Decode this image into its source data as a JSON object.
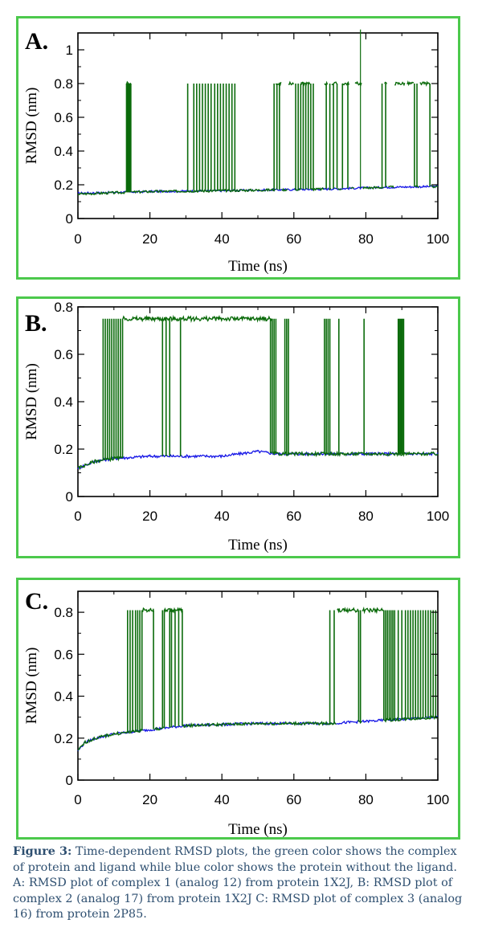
{
  "colors": {
    "complex": "#0b6b0b",
    "protein": "#1414e6",
    "frame": "#4cc94c"
  },
  "chart_data": [
    {
      "type": "line",
      "panel_label": "A.",
      "xlabel": "Time (ns)",
      "ylabel": "RMSD (nm)",
      "xlim": [
        0,
        100
      ],
      "ylim": [
        0,
        1.1
      ],
      "xticks": [
        0,
        20,
        40,
        60,
        80,
        100
      ],
      "yticks": [
        0,
        0.2,
        0.4,
        0.6,
        0.8,
        1
      ],
      "ytick_labels": [
        "0",
        "0.2",
        "0.4",
        "0.6",
        "0.8",
        "1"
      ],
      "grid": false,
      "series": [
        {
          "role": "protein",
          "x": [
            0,
            20,
            40,
            55,
            70,
            85,
            100
          ],
          "y": [
            0.15,
            0.16,
            0.165,
            0.17,
            0.175,
            0.185,
            0.19
          ]
        },
        {
          "role": "complex",
          "baseline": {
            "x": [
              0,
              20,
              40,
              55,
              70,
              85,
              100
            ],
            "y": [
              0.145,
              0.16,
              0.165,
              0.17,
              0.175,
              0.185,
              0.19
            ]
          },
          "high_level": 0.8,
          "high_intervals": [
            [
              13.5,
              14.8
            ],
            [
              55,
              56.5
            ],
            [
              58.5,
              60
            ],
            [
              62,
              64.5
            ],
            [
              68.5,
              69.5
            ],
            [
              70.5,
              72
            ],
            [
              73.5,
              75.5
            ],
            [
              77,
              79
            ],
            [
              85.2,
              86
            ],
            [
              88,
              91
            ],
            [
              91.5,
              93.5
            ],
            [
              95,
              98
            ]
          ],
          "switch_x": [
            13.5,
            13.7,
            13.9,
            14.1,
            14.3,
            14.5,
            14.7,
            30.5,
            32.2,
            33.0,
            33.8,
            34.6,
            35.4,
            36.2,
            37.0,
            38.0,
            38.8,
            39.6,
            40.4,
            41.2,
            42.0,
            42.8,
            43.6,
            54.5,
            55.3,
            56.0,
            60.5,
            61.2,
            61.9,
            62.6,
            63.3,
            64.0,
            64.7,
            65.4,
            69.0,
            70.0,
            71.0,
            72.0,
            73.5,
            75.0,
            84.5,
            85.5,
            93.5,
            94.2,
            97.8
          ],
          "spike": {
            "x": 78.5,
            "y": 1.12
          }
        }
      ]
    },
    {
      "type": "line",
      "panel_label": "B.",
      "xlabel": "Time (ns)",
      "ylabel": "RMSD (nm)",
      "xlim": [
        0,
        100
      ],
      "ylim": [
        0,
        0.8
      ],
      "xticks": [
        0,
        20,
        40,
        60,
        80,
        100
      ],
      "yticks": [
        0,
        0.2,
        0.4,
        0.6,
        0.8
      ],
      "ytick_labels": [
        "0",
        "0.2",
        "0.4",
        "0.6",
        "0.8"
      ],
      "grid": false,
      "series": [
        {
          "role": "protein",
          "x": [
            0,
            5,
            10,
            20,
            40,
            50,
            55,
            70,
            80,
            90,
            100
          ],
          "y": [
            0.12,
            0.15,
            0.16,
            0.17,
            0.17,
            0.19,
            0.18,
            0.18,
            0.18,
            0.18,
            0.18
          ]
        },
        {
          "role": "complex",
          "baseline": {
            "x": [
              0,
              5,
              10,
              20,
              40,
              50,
              55,
              70,
              80,
              90,
              100
            ],
            "y": [
              0.12,
              0.15,
              0.16,
              0.17,
              0.17,
              0.19,
              0.18,
              0.18,
              0.18,
              0.18,
              0.18
            ]
          },
          "high_level": 0.75,
          "high_intervals": [
            [
              12.5,
              54
            ]
          ],
          "switch_x": [
            7,
            7.6,
            8.2,
            8.8,
            9.4,
            10.0,
            10.6,
            11.2,
            11.8,
            12.4,
            23.5,
            24.5,
            25.5,
            28.5,
            53.5,
            54.0,
            54.5,
            55.0,
            57.5,
            58.0,
            58.5,
            68.5,
            69.0,
            69.5,
            70.0,
            72.5,
            79.5,
            89.0,
            89.3,
            89.6,
            89.9,
            90.2,
            90.5
          ],
          "spike": null
        }
      ]
    },
    {
      "type": "line",
      "panel_label": "C.",
      "xlabel": "Time (ns)",
      "ylabel": "RMSD (nm)",
      "xlim": [
        0,
        100
      ],
      "ylim": [
        0,
        0.9
      ],
      "xticks": [
        0,
        20,
        40,
        60,
        80,
        100
      ],
      "yticks": [
        0,
        0.2,
        0.4,
        0.6,
        0.8
      ],
      "ytick_labels": [
        "0",
        "0.2",
        "0.4",
        "0.6",
        "0.8"
      ],
      "grid": false,
      "series": [
        {
          "role": "protein",
          "x": [
            0,
            2,
            5,
            10,
            20,
            30,
            50,
            70,
            80,
            90,
            100
          ],
          "y": [
            0.14,
            0.18,
            0.2,
            0.22,
            0.24,
            0.26,
            0.27,
            0.27,
            0.28,
            0.29,
            0.3
          ]
        },
        {
          "role": "complex",
          "baseline": {
            "x": [
              0,
              2,
              5,
              10,
              20,
              30,
              50,
              70,
              80,
              90,
              100
            ],
            "y": [
              0.14,
              0.18,
              0.2,
              0.22,
              0.24,
              0.26,
              0.27,
              0.27,
              0.28,
              0.29,
              0.3
            ]
          },
          "high_level": 0.81,
          "high_intervals": [
            [
              18,
              21
            ],
            [
              24,
              29
            ],
            [
              72,
              78
            ],
            [
              79,
              85
            ]
          ],
          "switch_x": [
            13.8,
            14.5,
            15.2,
            16.0,
            16.6,
            17.2,
            17.8,
            21.0,
            23.5,
            24.0,
            25.5,
            26.0,
            27.0,
            28.0,
            29.0,
            70.0,
            71.2,
            78.0,
            78.5,
            85.0,
            85.5,
            86.0,
            86.5,
            87.0,
            87.5,
            88.0,
            89.0,
            90.0,
            91.0,
            91.7,
            92.4,
            93.1,
            93.8,
            94.5,
            95.2,
            95.9,
            96.6,
            97.3,
            98.0,
            98.7,
            99.4
          ],
          "spike": null
        }
      ]
    }
  ],
  "caption": {
    "label": "Figure 3:",
    "text": " Time-dependent RMSD plots, the green color shows the complex of protein and ligand while blue color shows the protein without the ligand. A: RMSD plot of complex 1 (analog 12) from protein 1X2J, B: RMSD plot of complex 2 (analog 17) from protein 1X2J C: RMSD plot of complex 3 (analog 16) from protein 2P85."
  }
}
